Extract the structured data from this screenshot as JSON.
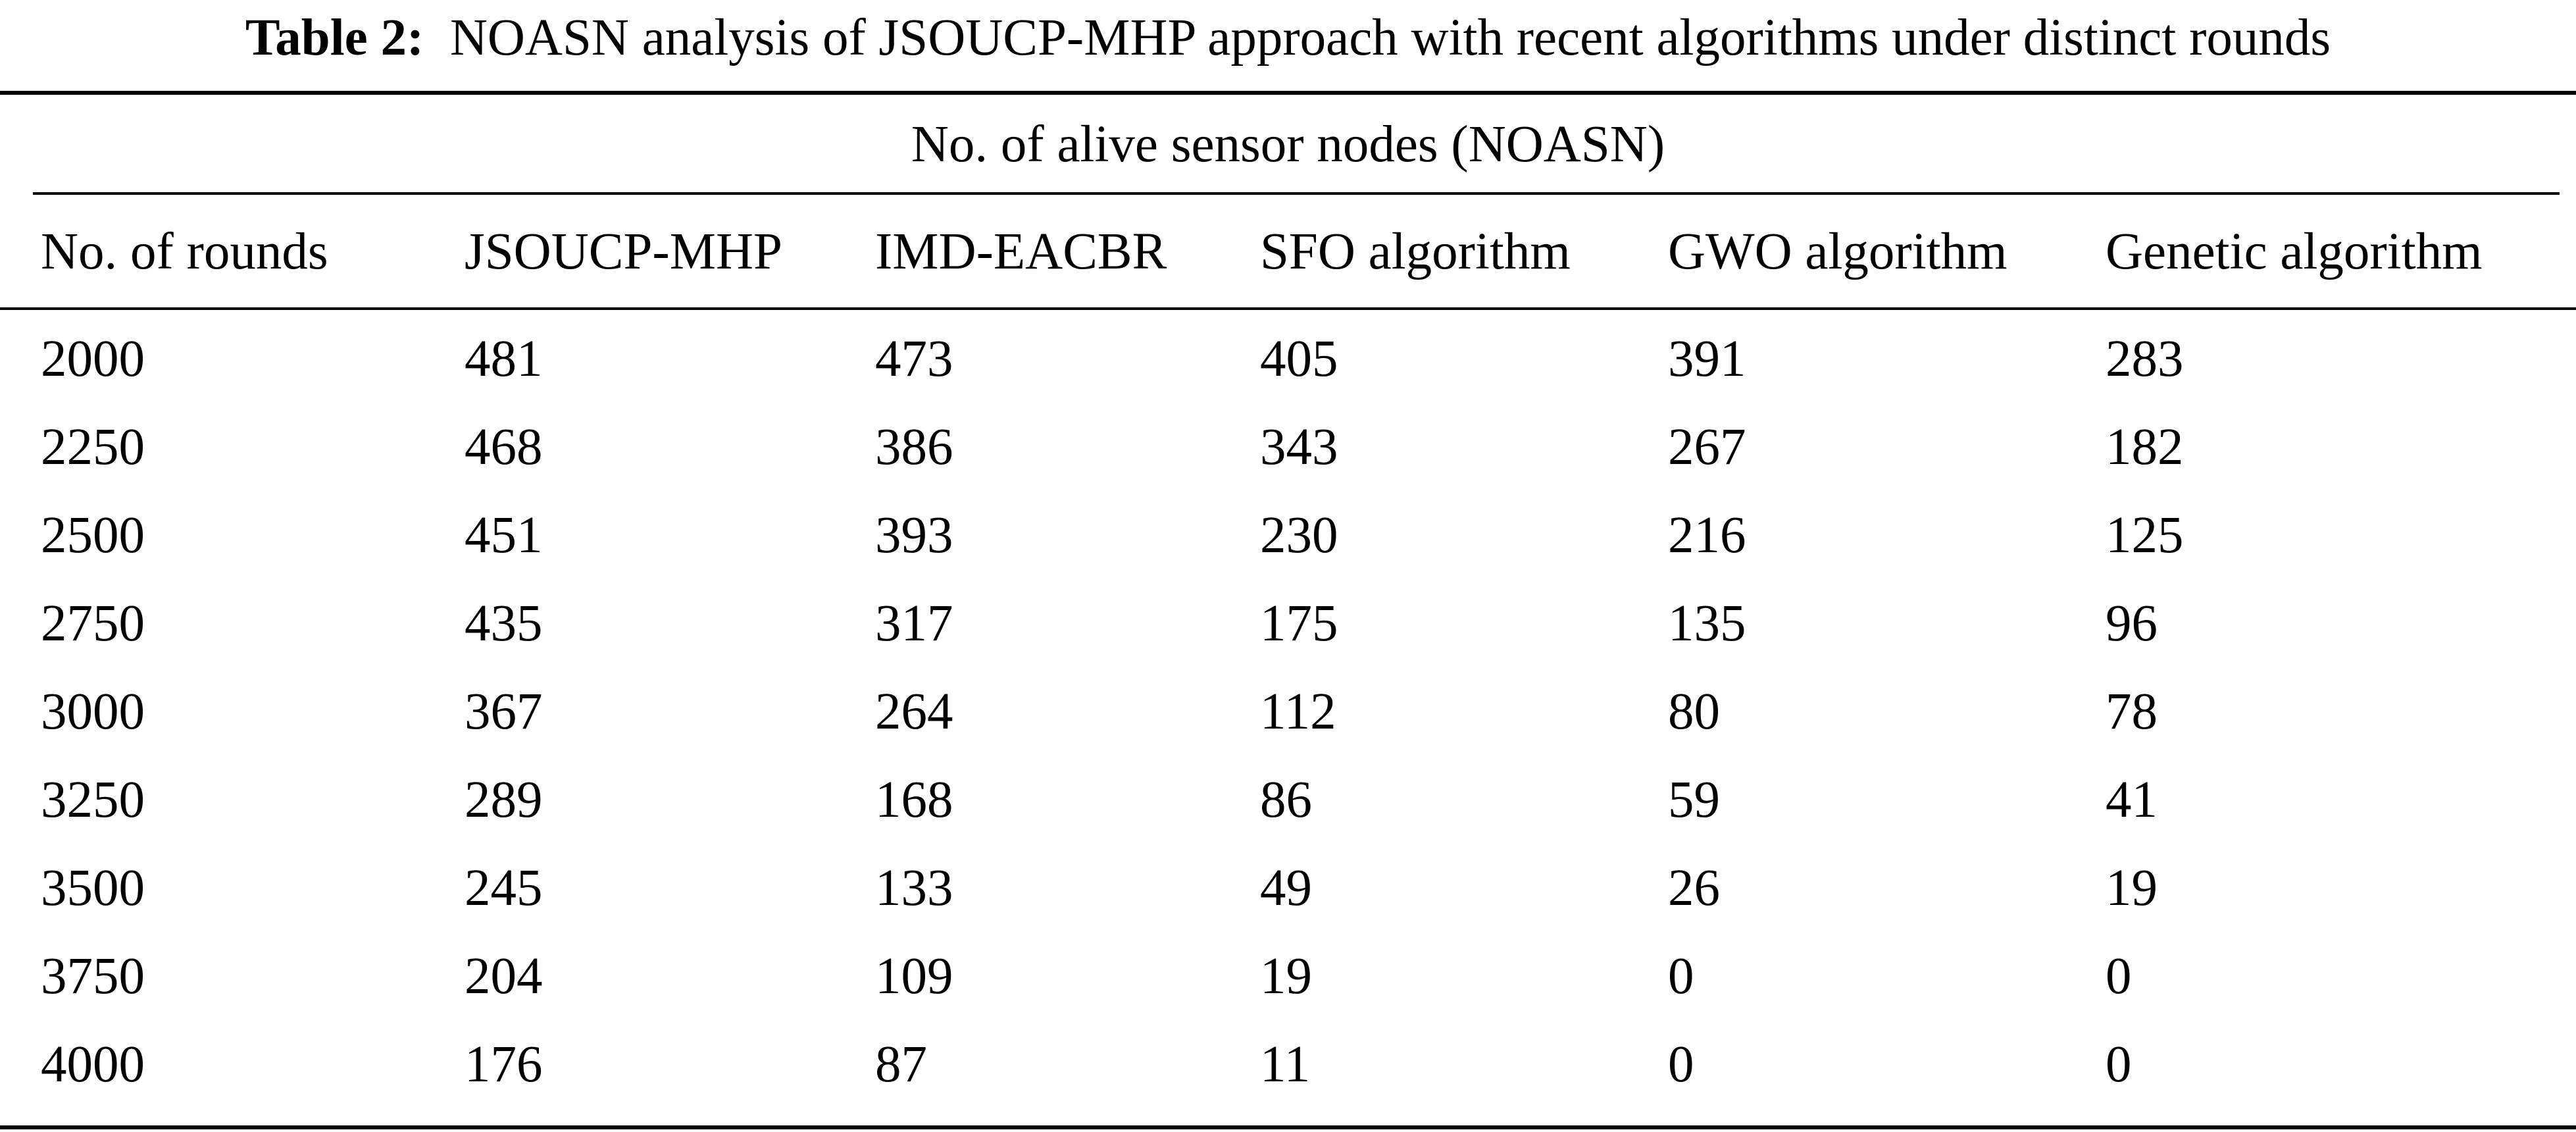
{
  "caption": {
    "label": "Table 2:",
    "text": "NOASN analysis of JSOUCP-MHP approach with recent algorithms under distinct rounds"
  },
  "group_header": "No. of alive sensor nodes (NOASN)",
  "columns": [
    "No. of rounds",
    "JSOUCP-MHP",
    "IMD-EACBR",
    "SFO algorithm",
    "GWO algorithm",
    "Genetic algorithm"
  ],
  "rows": [
    [
      "2000",
      "481",
      "473",
      "405",
      "391",
      "283"
    ],
    [
      "2250",
      "468",
      "386",
      "343",
      "267",
      "182"
    ],
    [
      "2500",
      "451",
      "393",
      "230",
      "216",
      "125"
    ],
    [
      "2750",
      "435",
      "317",
      "175",
      "135",
      "96"
    ],
    [
      "3000",
      "367",
      "264",
      "112",
      "80",
      "78"
    ],
    [
      "3250",
      "289",
      "168",
      "86",
      "59",
      "41"
    ],
    [
      "3500",
      "245",
      "133",
      "49",
      "26",
      "19"
    ],
    [
      "3750",
      "204",
      "109",
      "19",
      "0",
      "0"
    ],
    [
      "4000",
      "176",
      "87",
      "11",
      "0",
      "0"
    ]
  ]
}
